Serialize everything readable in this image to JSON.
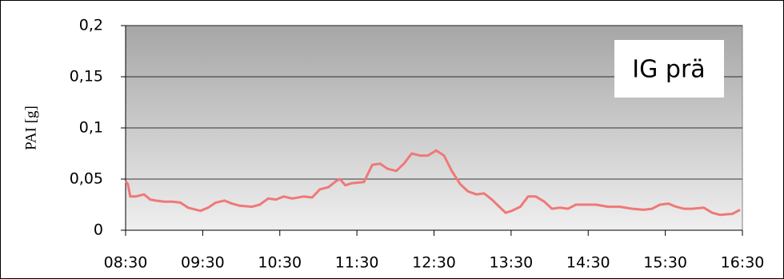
{
  "chart_data": {
    "type": "line",
    "title": "IG prä",
    "ylabel": "PAI [g]",
    "xlim": [
      8.5,
      16.5
    ],
    "xticks": [
      {
        "value": 8.5,
        "label": "08:30"
      },
      {
        "value": 9.5,
        "label": "09:30"
      },
      {
        "value": 10.5,
        "label": "10:30"
      },
      {
        "value": 11.5,
        "label": "11:30"
      },
      {
        "value": 12.5,
        "label": "12:30"
      },
      {
        "value": 13.5,
        "label": "13:30"
      },
      {
        "value": 14.5,
        "label": "14:30"
      },
      {
        "value": 15.5,
        "label": "15:30"
      },
      {
        "value": 16.5,
        "label": "16:30"
      }
    ],
    "ylim": [
      0,
      0.2
    ],
    "yticks": [
      0,
      {
        "value": 0.05,
        "label": "0,05"
      },
      {
        "value": 0.1,
        "label": "0,1"
      },
      {
        "value": 0.15,
        "label": "0,15"
      },
      {
        "value": 0.2,
        "label": "0,2"
      }
    ],
    "series": [
      {
        "color": "#f07878",
        "x": [
          8.5,
          8.53,
          8.56,
          8.63,
          8.74,
          8.82,
          8.89,
          9.0,
          9.1,
          9.21,
          9.31,
          9.47,
          9.57,
          9.67,
          9.78,
          9.88,
          9.98,
          10.14,
          10.24,
          10.35,
          10.45,
          10.55,
          10.66,
          10.81,
          10.92,
          11.02,
          11.13,
          11.23,
          11.28,
          11.35,
          11.44,
          11.59,
          11.7,
          11.8,
          11.9,
          12.01,
          12.11,
          12.21,
          12.32,
          12.42,
          12.53,
          12.63,
          12.73,
          12.84,
          12.94,
          13.05,
          13.15,
          13.25,
          13.36,
          13.43,
          13.51,
          13.62,
          13.72,
          13.82,
          13.93,
          14.03,
          14.13,
          14.24,
          14.34,
          14.45,
          14.6,
          14.76,
          14.91,
          15.07,
          15.22,
          15.33,
          15.43,
          15.54,
          15.64,
          15.74,
          15.85,
          16.0,
          16.11,
          16.21,
          16.37,
          16.47
        ],
        "values": [
          0.048,
          0.045,
          0.033,
          0.033,
          0.035,
          0.03,
          0.029,
          0.028,
          0.028,
          0.027,
          0.022,
          0.019,
          0.022,
          0.027,
          0.029,
          0.026,
          0.024,
          0.023,
          0.025,
          0.031,
          0.03,
          0.033,
          0.031,
          0.033,
          0.032,
          0.04,
          0.042,
          0.048,
          0.05,
          0.044,
          0.046,
          0.047,
          0.064,
          0.065,
          0.06,
          0.058,
          0.065,
          0.075,
          0.073,
          0.073,
          0.078,
          0.073,
          0.058,
          0.045,
          0.038,
          0.035,
          0.036,
          0.03,
          0.022,
          0.017,
          0.019,
          0.023,
          0.033,
          0.033,
          0.028,
          0.021,
          0.022,
          0.021,
          0.025,
          0.025,
          0.025,
          0.023,
          0.023,
          0.021,
          0.02,
          0.021,
          0.025,
          0.026,
          0.023,
          0.021,
          0.021,
          0.022,
          0.017,
          0.015,
          0.016,
          0.02
        ]
      }
    ]
  }
}
